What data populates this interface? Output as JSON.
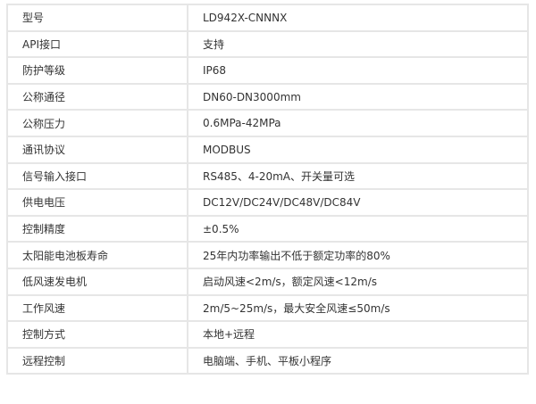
{
  "rows": [
    {
      "label": "型号",
      "value": "LD942X-CNNNX"
    },
    {
      "label": "API接口",
      "value": "支持"
    },
    {
      "label": "防护等级",
      "value": "IP68"
    },
    {
      "label": "公称通径",
      "value": "DN60-DN3000mm"
    },
    {
      "label": "公称压力",
      "value": "0.6MPa-42MPa"
    },
    {
      "label": "通讯协议",
      "value": "MODBUS"
    },
    {
      "label": "信号输入接口",
      "value": "RS485、4-20mA、开关量可选"
    },
    {
      "label": "供电电压",
      "value": "DC12V/DC24V/DC48V/DC84V"
    },
    {
      "label": "控制精度",
      "value": "±0.5%"
    },
    {
      "label": "太阳能电池板寿命",
      "value": "25年内功率输出不低于额定功率的80%"
    },
    {
      "label": "低风速发电机",
      "value": "启动风速<2m/s，额定风速<12m/s"
    },
    {
      "label": "工作风速",
      "value": "2m/5~25m/s，最大安全风速≤50m/s"
    },
    {
      "label": "控制方式",
      "value": "本地+远程"
    },
    {
      "label": "远程控制",
      "value": "电脑端、手机、平板小程序"
    }
  ]
}
